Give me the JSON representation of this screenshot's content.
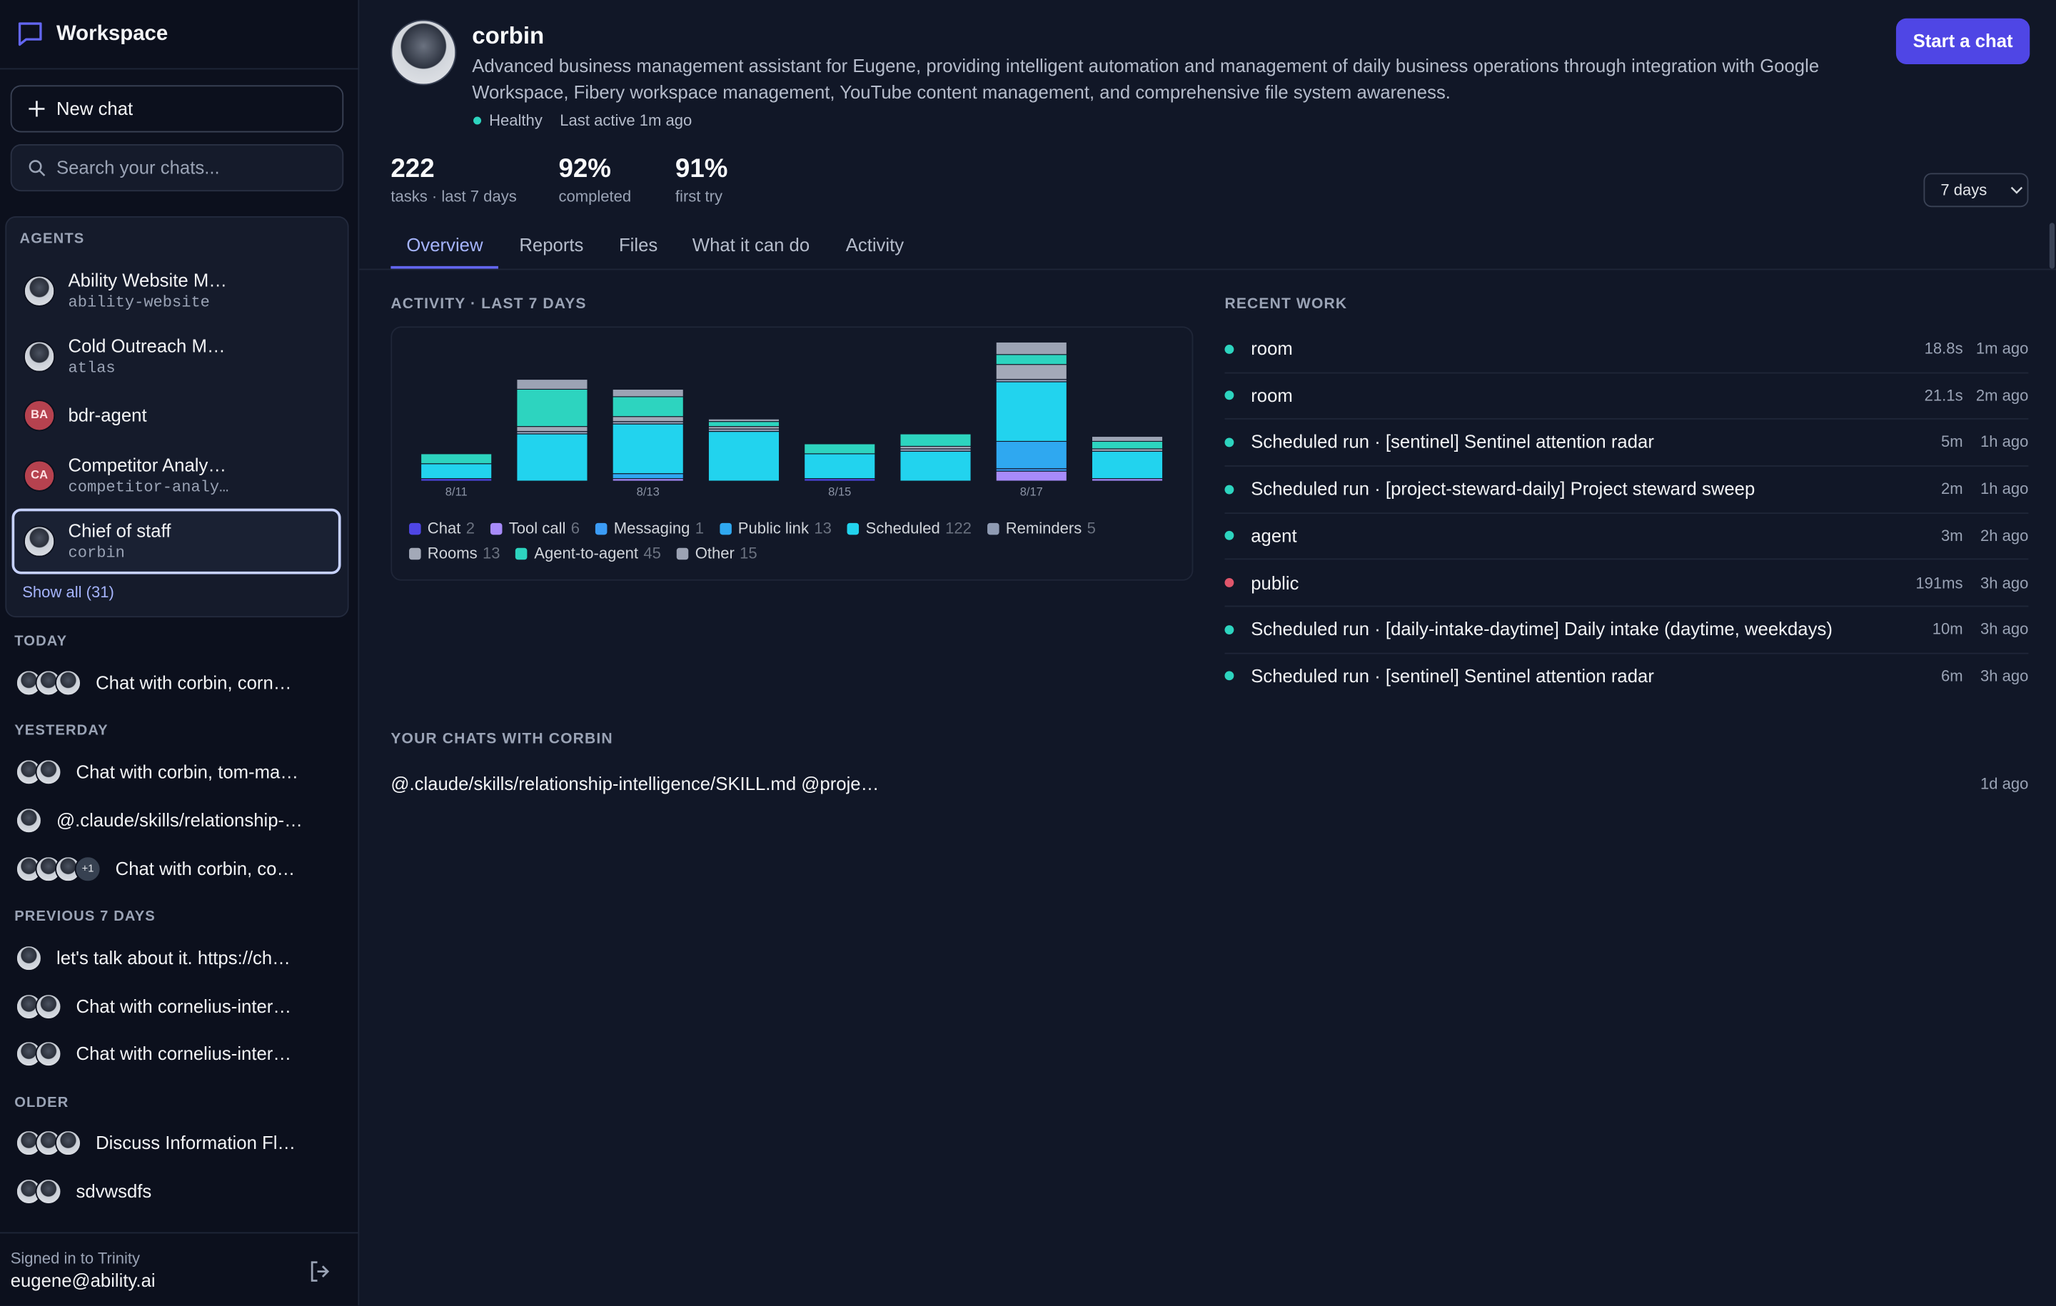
{
  "sidebar": {
    "brand": "Workspace",
    "new_chat": "New chat",
    "search_placeholder": "Search your chats...",
    "agents_heading": "AGENTS",
    "agents": [
      {
        "name": "Ability Website M…",
        "handle": "ability-website"
      },
      {
        "name": "Cold Outreach M…",
        "handle": "atlas"
      },
      {
        "name": "bdr-agent",
        "initials": "BA"
      },
      {
        "name": "Competitor Analy…",
        "handle": "competitor-analy…",
        "initials": "CA"
      },
      {
        "name": "Chief of staff",
        "handle": "corbin"
      }
    ],
    "show_all": "Show all (31)",
    "chat_groups": [
      {
        "label": "TODAY",
        "chats": [
          {
            "title": "Chat with corbin, corn…"
          }
        ]
      },
      {
        "label": "YESTERDAY",
        "chats": [
          {
            "title": "Chat with corbin, tom-ma…"
          },
          {
            "title": "@.claude/skills/relationship-…"
          },
          {
            "title": "Chat with corbin, co…",
            "extra": "+1"
          }
        ]
      },
      {
        "label": "PREVIOUS 7 DAYS",
        "chats": [
          {
            "title": "let's talk about it. https://ch…"
          },
          {
            "title": "Chat with cornelius-inter…"
          },
          {
            "title": "Chat with cornelius-inter…"
          }
        ]
      },
      {
        "label": "OLDER",
        "chats": [
          {
            "title": "Discuss Information Fl…"
          },
          {
            "title": "sdvwsdfs"
          }
        ]
      }
    ],
    "signed_in": "Signed in to Trinity",
    "email": "eugene@ability.ai"
  },
  "agent": {
    "name": "corbin",
    "description": "Advanced business management assistant for Eugene, providing intelligent automation and management of daily business operations through integration with Google Workspace, Fibery workspace management, YouTube content management, and comprehensive file system awareness.",
    "status": "Healthy",
    "last_active": "Last active 1m ago",
    "start_chat": "Start a chat"
  },
  "stats": [
    {
      "value": "222",
      "label": "tasks · last 7 days"
    },
    {
      "value": "92%",
      "label": "completed"
    },
    {
      "value": "91%",
      "label": "first try"
    }
  ],
  "range_select": "7 days",
  "tabs": [
    "Overview",
    "Reports",
    "Files",
    "What it can do",
    "Activity"
  ],
  "chart_data": {
    "type": "bar",
    "stacked": true,
    "title": "ACTIVITY · LAST 7 DAYS",
    "categories": [
      "8/11",
      null,
      "8/13",
      null,
      "8/15",
      null,
      "8/17",
      null
    ],
    "series": [
      {
        "name": "Chat",
        "color": "#4f46e5",
        "total": 2,
        "values": [
          1,
          0,
          0,
          0,
          1,
          0,
          0,
          0
        ]
      },
      {
        "name": "Tool call",
        "color": "#a78bfa",
        "total": 6,
        "values": [
          0,
          0,
          1,
          0,
          0,
          0,
          4,
          1
        ]
      },
      {
        "name": "Messaging",
        "color": "#3b9cf6",
        "total": 1,
        "values": [
          0,
          0,
          0,
          0,
          0,
          0,
          1,
          0
        ]
      },
      {
        "name": "Public link",
        "color": "#2fa8f0",
        "total": 13,
        "values": [
          0,
          0,
          2,
          0,
          0,
          0,
          11,
          0
        ]
      },
      {
        "name": "Scheduled",
        "color": "#22d3ee",
        "total": 122,
        "values": [
          6,
          19,
          20,
          20,
          10,
          12,
          24,
          11
        ]
      },
      {
        "name": "Reminders",
        "color": "#8f9bb3",
        "total": 5,
        "values": [
          0,
          1,
          1,
          1,
          0,
          1,
          1,
          0
        ]
      },
      {
        "name": "Rooms",
        "color": "#a3a9b8",
        "total": 13,
        "values": [
          0,
          2,
          2,
          1,
          0,
          1,
          6,
          1
        ]
      },
      {
        "name": "Agent-to-agent",
        "color": "#2dd4bf",
        "total": 45,
        "values": [
          4,
          15,
          8,
          2,
          4,
          5,
          4,
          3
        ]
      },
      {
        "name": "Other",
        "color": "#9ca3b4",
        "total": 15,
        "values": [
          0,
          4,
          3,
          1,
          0,
          0,
          5,
          2
        ]
      }
    ]
  },
  "recent_work": {
    "heading": "RECENT WORK",
    "items": [
      {
        "title": "room",
        "duration": "18.8s",
        "ago": "1m ago",
        "dot": "#2dd4bf"
      },
      {
        "title": "room",
        "duration": "21.1s",
        "ago": "2m ago",
        "dot": "#2dd4bf"
      },
      {
        "title": "Scheduled run · [sentinel] Sentinel attention radar",
        "duration": "5m",
        "ago": "1h ago",
        "dot": "#2dd4bf"
      },
      {
        "title": "Scheduled run · [project-steward-daily] Project steward sweep",
        "duration": "2m",
        "ago": "1h ago",
        "dot": "#2dd4bf"
      },
      {
        "title": "agent",
        "duration": "3m",
        "ago": "2h ago",
        "dot": "#2dd4bf"
      },
      {
        "title": "public",
        "duration": "191ms",
        "ago": "3h ago",
        "dot": "#e0566b"
      },
      {
        "title": "Scheduled run · [daily-intake-daytime] Daily intake (daytime, weekdays)",
        "duration": "10m",
        "ago": "3h ago",
        "dot": "#2dd4bf"
      },
      {
        "title": "Scheduled run · [sentinel] Sentinel attention radar",
        "duration": "6m",
        "ago": "3h ago",
        "dot": "#2dd4bf"
      }
    ]
  },
  "your_chats": {
    "heading": "YOUR CHATS WITH CORBIN",
    "items": [
      {
        "title": "@.claude/skills/relationship-intelligence/SKILL.md @proje…",
        "ago": "1d ago"
      }
    ]
  }
}
